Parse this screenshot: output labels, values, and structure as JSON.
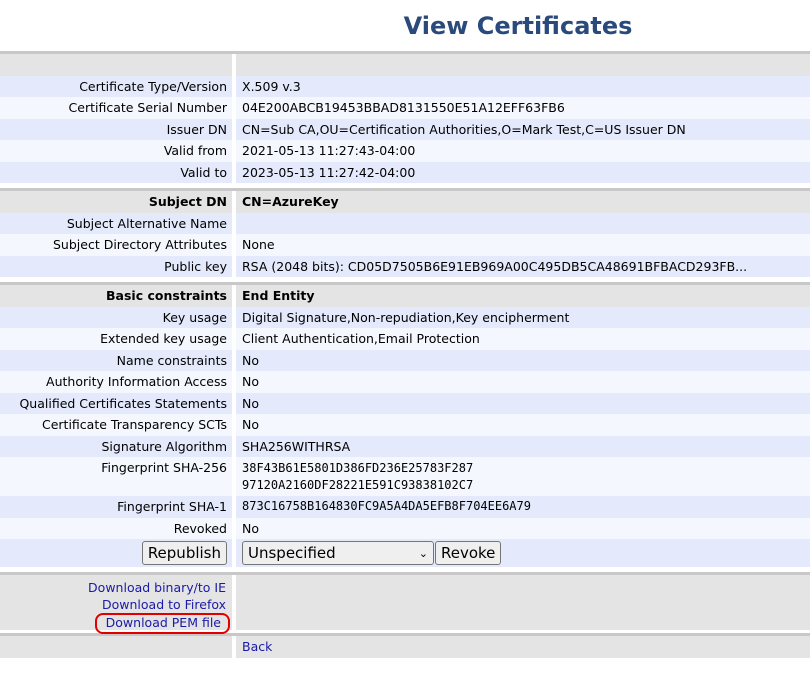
{
  "page_title": "View Certificates",
  "section1": {
    "rows": [
      {
        "label": "Certificate Type/Version",
        "value": "X.509 v.3"
      },
      {
        "label": "Certificate Serial Number",
        "value": "04E200ABCB19453BBAD8131550E51A12EFF63FB6"
      },
      {
        "label": "Issuer DN",
        "value": "CN=Sub CA,OU=Certification Authorities,O=Mark Test,C=US Issuer DN"
      },
      {
        "label": "Valid from",
        "value": "2021-05-13 11:27:43-04:00"
      },
      {
        "label": "Valid to",
        "value": "2023-05-13 11:27:42-04:00"
      }
    ]
  },
  "section2": {
    "header": {
      "label": "Subject DN",
      "value": "CN=AzureKey"
    },
    "rows": [
      {
        "label": "Subject Alternative Name",
        "value": ""
      },
      {
        "label": "Subject Directory Attributes",
        "value": "None"
      },
      {
        "label": "Public key",
        "value": "RSA (2048 bits): CD05D7505B6E91EB969A00C495DB5CA48691BFBACD293FB..."
      }
    ]
  },
  "section3": {
    "header": {
      "label": "Basic constraints",
      "value": "End Entity"
    },
    "rows": [
      {
        "label": "Key usage",
        "value": "Digital Signature,Non-repudiation,Key encipherment"
      },
      {
        "label": "Extended key usage",
        "value": "Client Authentication,Email Protection"
      },
      {
        "label": "Name constraints",
        "value": "No"
      },
      {
        "label": "Authority Information Access",
        "value": "No"
      },
      {
        "label": "Qualified Certificates Statements",
        "value": "No"
      },
      {
        "label": "Certificate Transparency SCTs",
        "value": "No"
      },
      {
        "label": "Signature Algorithm",
        "value": "SHA256WITHRSA"
      }
    ],
    "fingerprint_sha256": {
      "label": "Fingerprint SHA-256",
      "line1": "38F43B61E5801D386FD236E25783F287",
      "line2": "97120A2160DF28221E591C93838102C7"
    },
    "fingerprint_sha1": {
      "label": "Fingerprint SHA-1",
      "value": "873C16758B164830FC9A5A4DA5EFB8F704EE6A79"
    },
    "revoked": {
      "label": "Revoked",
      "value": "No"
    }
  },
  "actions": {
    "republish_label": "Republish",
    "reason_selected": "Unspecified",
    "revoke_label": "Revoke"
  },
  "downloads": {
    "binary": "Download binary/to IE",
    "firefox": "Download to Firefox",
    "pem": "Download PEM file",
    "highlight_color": "#e00000"
  },
  "back_label": "Back"
}
